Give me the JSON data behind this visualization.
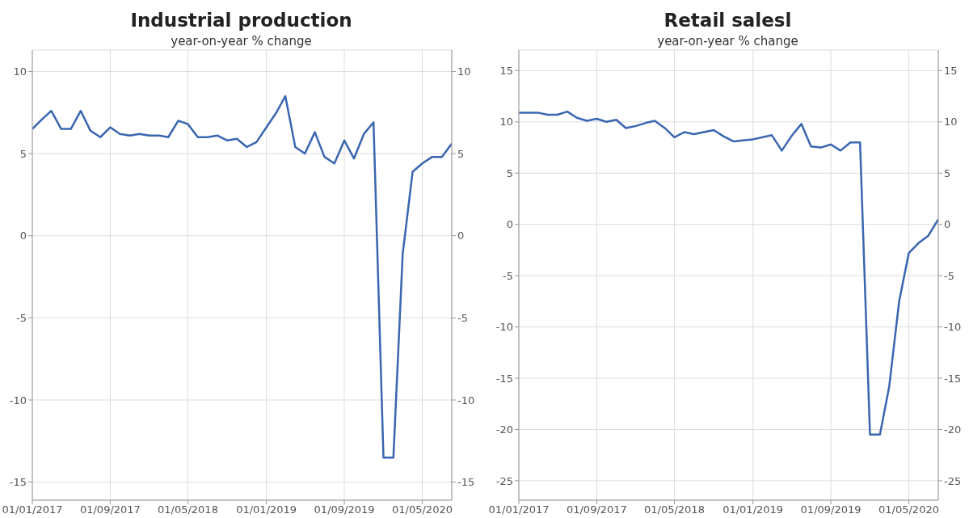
{
  "chart_data": [
    {
      "type": "line",
      "title": "Industrial production",
      "subtitle": "year-on-year % change",
      "x": [
        "2017-01",
        "2017-02",
        "2017-03",
        "2017-04",
        "2017-05",
        "2017-06",
        "2017-07",
        "2017-08",
        "2017-09",
        "2017-10",
        "2017-11",
        "2017-12",
        "2018-01",
        "2018-02",
        "2018-03",
        "2018-04",
        "2018-05",
        "2018-06",
        "2018-07",
        "2018-08",
        "2018-09",
        "2018-10",
        "2018-11",
        "2018-12",
        "2019-01",
        "2019-02",
        "2019-03",
        "2019-04",
        "2019-05",
        "2019-06",
        "2019-07",
        "2019-08",
        "2019-09",
        "2019-10",
        "2019-11",
        "2019-12",
        "2020-01",
        "2020-02",
        "2020-03",
        "2020-04",
        "2020-05",
        "2020-06",
        "2020-07",
        "2020-08"
      ],
      "series": [
        {
          "color": "#3a66b0",
          "values": [
            6.5,
            7.1,
            7.6,
            6.5,
            6.5,
            7.6,
            6.4,
            6.0,
            6.6,
            6.2,
            6.1,
            6.2,
            6.1,
            6.1,
            6.0,
            7.0,
            6.8,
            6.0,
            6.0,
            6.1,
            5.8,
            5.9,
            5.4,
            5.7,
            6.6,
            7.5,
            8.5,
            5.4,
            5.0,
            6.3,
            4.8,
            4.4,
            5.8,
            4.7,
            6.2,
            6.9,
            -13.5,
            -13.5,
            -1.1,
            3.9,
            4.4,
            4.8,
            4.8,
            5.6
          ]
        }
      ],
      "xlim": [
        "2017-01-01",
        "2020-08-01"
      ],
      "xticks": [
        {
          "value": "2017-01-01",
          "label": "01/01/2017"
        },
        {
          "value": "2017-09-01",
          "label": "01/09/2017"
        },
        {
          "value": "2018-05-01",
          "label": "01/05/2018"
        },
        {
          "value": "2019-01-01",
          "label": "01/01/2019"
        },
        {
          "value": "2019-09-01",
          "label": "01/09/2019"
        },
        {
          "value": "2020-05-01",
          "label": "01/05/2020"
        }
      ],
      "ylim": [
        -16.1,
        11.3
      ],
      "yticks": [
        -15,
        -10,
        -5,
        0,
        5,
        10
      ],
      "y2lim": [
        -16.1,
        11.3
      ],
      "y2ticks": [
        -15,
        -10,
        -5,
        0,
        5,
        10
      ],
      "grid": true
    },
    {
      "type": "line",
      "title": "Retail salesl",
      "subtitle": "year-on-year % change",
      "x": [
        "2017-01",
        "2017-02",
        "2017-03",
        "2017-04",
        "2017-05",
        "2017-06",
        "2017-07",
        "2017-08",
        "2017-09",
        "2017-10",
        "2017-11",
        "2017-12",
        "2018-01",
        "2018-02",
        "2018-03",
        "2018-04",
        "2018-05",
        "2018-06",
        "2018-07",
        "2018-08",
        "2018-09",
        "2018-10",
        "2018-11",
        "2018-12",
        "2019-01",
        "2019-02",
        "2019-03",
        "2019-04",
        "2019-05",
        "2019-06",
        "2019-07",
        "2019-08",
        "2019-09",
        "2019-10",
        "2019-11",
        "2019-12",
        "2020-01",
        "2020-02",
        "2020-03",
        "2020-04",
        "2020-05",
        "2020-06",
        "2020-07",
        "2020-08"
      ],
      "series": [
        {
          "color": "#3a66b0",
          "values": [
            10.9,
            10.9,
            10.9,
            10.7,
            10.7,
            11.0,
            10.4,
            10.1,
            10.3,
            10.0,
            10.2,
            9.4,
            9.6,
            9.9,
            10.1,
            9.4,
            8.5,
            9.0,
            8.8,
            9.0,
            9.2,
            8.6,
            8.1,
            8.2,
            8.3,
            8.5,
            8.7,
            7.2,
            8.6,
            9.8,
            7.6,
            7.5,
            7.8,
            7.2,
            8.0,
            8.0,
            -20.5,
            -20.5,
            -15.8,
            -7.5,
            -2.8,
            -1.8,
            -1.1,
            0.5
          ]
        }
      ],
      "xlim": [
        "2017-01-01",
        "2020-08-01"
      ],
      "xticks": [
        {
          "value": "2017-01-01",
          "label": "01/01/2017"
        },
        {
          "value": "2017-09-01",
          "label": "01/09/2017"
        },
        {
          "value": "2018-05-01",
          "label": "01/05/2018"
        },
        {
          "value": "2019-01-01",
          "label": "01/01/2019"
        },
        {
          "value": "2019-09-01",
          "label": "01/09/2019"
        },
        {
          "value": "2020-05-01",
          "label": "01/05/2020"
        }
      ],
      "ylim": [
        -26.9,
        17
      ],
      "yticks": [
        -25,
        -20,
        -15,
        -10,
        -5,
        0,
        5,
        10,
        15
      ],
      "y2lim": [
        -26.9,
        17
      ],
      "y2ticks": [
        -25,
        -20,
        -15,
        -10,
        -5,
        0,
        5,
        10,
        15
      ],
      "grid": true
    }
  ]
}
